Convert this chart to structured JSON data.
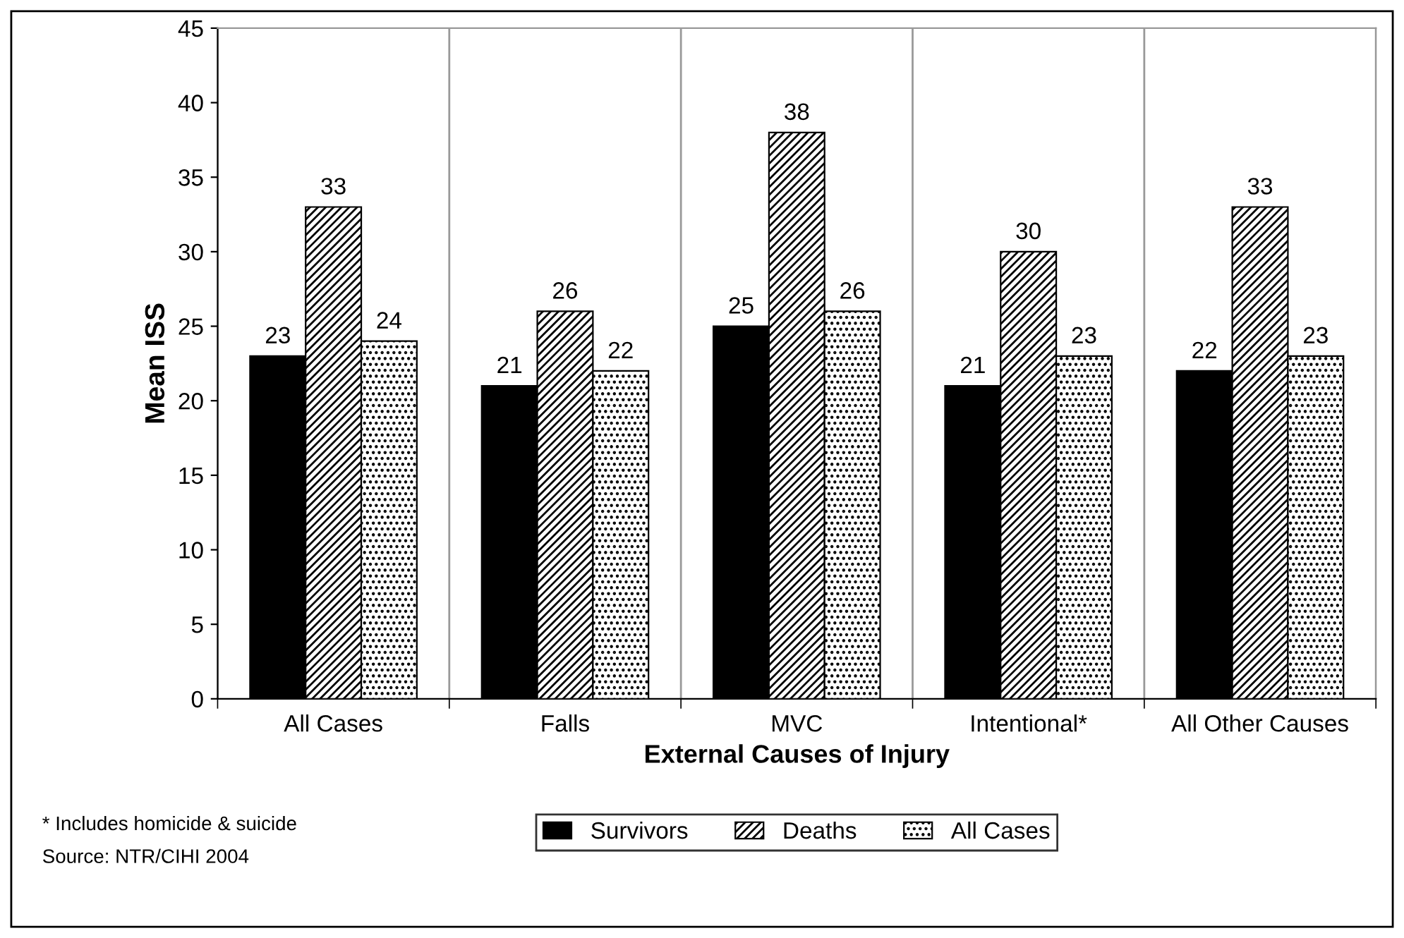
{
  "chart_data": {
    "type": "bar",
    "xlabel": "External Causes of Injury",
    "ylabel": "Mean ISS",
    "categories": [
      "All Cases",
      "Falls",
      "MVC",
      "Intentional*",
      "All Other Causes"
    ],
    "series": [
      {
        "name": "Survivors",
        "color": "#000000",
        "values": [
          23,
          21,
          25,
          21,
          22
        ]
      },
      {
        "name": "Deaths",
        "color": "#000000",
        "values": [
          33,
          26,
          38,
          30,
          33
        ]
      },
      {
        "name": "All Cases",
        "color": "#000000",
        "values": [
          24,
          22,
          26,
          23,
          23
        ]
      }
    ],
    "ylim": [
      0,
      45
    ],
    "yticks": [
      0,
      5,
      10,
      15,
      20,
      25,
      30,
      35,
      40,
      45
    ],
    "grid": "x",
    "legend": "bottom",
    "data_labels": true,
    "annotations": [
      "* Includes homicide & suicide",
      "Source: NTR/CIHI 2004"
    ]
  }
}
